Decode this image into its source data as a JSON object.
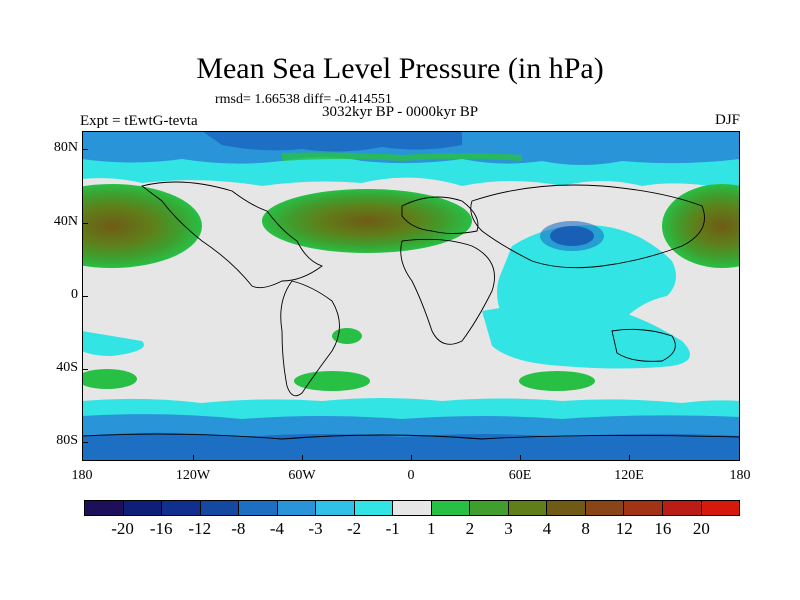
{
  "title": "Mean Sea Level Pressure (in hPa)",
  "stats": "rmsd= 1.66538 diff= -0.414551",
  "subtitle": "3032kyr BP - 0000kyr BP",
  "experiment": "Expt = tEwtG-tevta",
  "season": "DJF",
  "y_ticks": [
    "80N",
    "40N",
    "0",
    "40S",
    "80S"
  ],
  "x_ticks": [
    "180",
    "120W",
    "60W",
    "0",
    "60E",
    "120E",
    "180"
  ],
  "colorbar": {
    "colors": [
      "#1e0f5a",
      "#0f1f78",
      "#102f8e",
      "#1548a0",
      "#1d6fc4",
      "#2a94d8",
      "#2fc2e6",
      "#33e4e4",
      "#e6e6e6",
      "#28bf45",
      "#3f9e2e",
      "#5f7f1a",
      "#6f5b16",
      "#8a4419",
      "#a33317",
      "#bb1c16",
      "#d6190d"
    ],
    "labels": [
      "-20",
      "-16",
      "-12",
      "-8",
      "-4",
      "-3",
      "-2",
      "-1",
      "1",
      "2",
      "3",
      "4",
      "8",
      "12",
      "16",
      "20"
    ]
  },
  "colors": {
    "neutral": "#e6e6e6",
    "ocean_cyan": "#33e4e4",
    "blue_mid": "#1d6fc4",
    "blue_dark": "#1548a0",
    "green": "#28bf45",
    "green_dark": "#3f9e2e",
    "olive": "#5f7f1a",
    "brown": "#6f5b16"
  }
}
